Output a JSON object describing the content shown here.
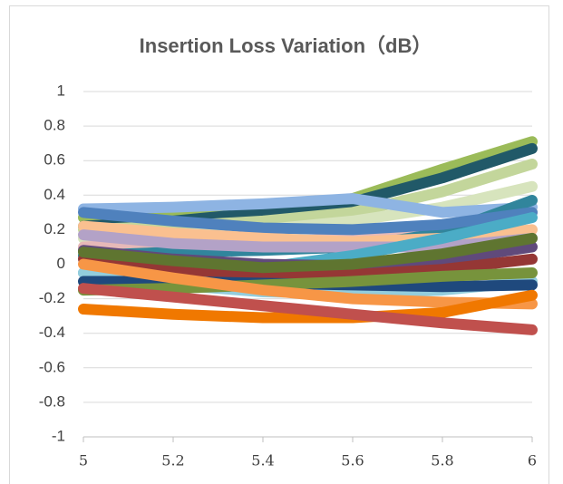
{
  "chart_data": {
    "type": "line",
    "title": "Insertion Loss Variation（dB）",
    "x": [
      5,
      5.2,
      5.4,
      5.6,
      5.8,
      6
    ],
    "xlim": [
      5,
      6
    ],
    "xticks": [
      5,
      5.2,
      5.4,
      5.6,
      5.8,
      6
    ],
    "ylim": [
      -1,
      1
    ],
    "yticks": [
      -1,
      -0.8,
      -0.6,
      -0.4,
      -0.2,
      0,
      0.2,
      0.4,
      0.6,
      0.8,
      1
    ],
    "grid": true,
    "series": [
      {
        "color": "#9bbb59",
        "values": [
          0.27,
          0.28,
          0.31,
          0.38,
          0.55,
          0.71
        ]
      },
      {
        "color": "#215968",
        "values": [
          0.22,
          0.25,
          0.3,
          0.36,
          0.5,
          0.67
        ]
      },
      {
        "color": "#c3d69b",
        "values": [
          0.2,
          0.22,
          0.25,
          0.3,
          0.42,
          0.58
        ]
      },
      {
        "color": "#d7e4bd",
        "values": [
          0.15,
          0.17,
          0.2,
          0.25,
          0.33,
          0.45
        ]
      },
      {
        "color": "#8eb4e3",
        "values": [
          0.32,
          0.33,
          0.35,
          0.38,
          0.3,
          0.33
        ]
      },
      {
        "color": "#e6b9b8",
        "values": [
          0.1,
          0.12,
          0.13,
          0.15,
          0.2,
          0.3
        ]
      },
      {
        "color": "#31859c",
        "values": [
          0.05,
          0.07,
          0.08,
          0.1,
          0.18,
          0.37
        ]
      },
      {
        "color": "#4f81bd",
        "values": [
          0.3,
          0.25,
          0.21,
          0.2,
          0.23,
          0.3
        ]
      },
      {
        "color": "#fac090",
        "values": [
          0.22,
          0.18,
          0.15,
          0.13,
          0.15,
          0.2
        ]
      },
      {
        "color": "#b3a2c7",
        "values": [
          0.17,
          0.12,
          0.1,
          0.1,
          0.1,
          0.15
        ]
      },
      {
        "color": "#4bacc6",
        "values": [
          -0.05,
          -0.05,
          -0.02,
          0.05,
          0.15,
          0.27
        ]
      },
      {
        "color": "#93cddd",
        "values": [
          -0.05,
          -0.12,
          -0.16,
          -0.17,
          -0.15,
          -0.1
        ]
      },
      {
        "color": "#604a7b",
        "values": [
          0.08,
          0.03,
          0,
          -0.01,
          0.02,
          0.1
        ]
      },
      {
        "color": "#953735",
        "values": [
          0.03,
          -0.03,
          -0.06,
          -0.06,
          -0.03,
          0.03
        ]
      },
      {
        "color": "#5f7530",
        "values": [
          0.07,
          0.02,
          -0.02,
          0,
          0.06,
          0.15
        ]
      },
      {
        "color": "#1f497d",
        "values": [
          -0.1,
          -0.1,
          -0.11,
          -0.12,
          -0.13,
          -0.12
        ]
      },
      {
        "color": "#77933c",
        "values": [
          -0.15,
          -0.14,
          -0.12,
          -0.1,
          -0.07,
          -0.05
        ]
      },
      {
        "color": "#f79646",
        "values": [
          0,
          -0.08,
          -0.15,
          -0.2,
          -0.22,
          -0.23
        ]
      },
      {
        "color": "#f07800",
        "values": [
          -0.26,
          -0.29,
          -0.31,
          -0.31,
          -0.28,
          -0.18
        ]
      },
      {
        "color": "#c0504d",
        "values": [
          -0.14,
          -0.19,
          -0.24,
          -0.29,
          -0.34,
          -0.38
        ]
      }
    ]
  }
}
